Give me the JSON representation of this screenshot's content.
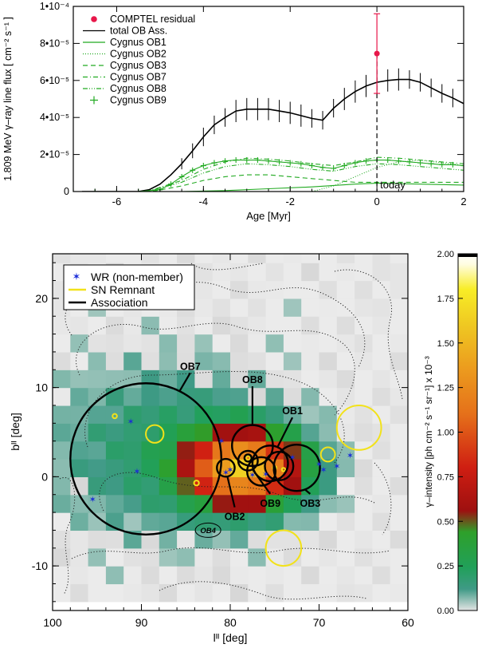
{
  "chart_data": [
    {
      "type": "line",
      "xlabel": "Age [Myr]",
      "ylabel": "1.809 MeV γ–ray line flux [ cm⁻² s⁻¹ ]",
      "xlim": [
        -7,
        2
      ],
      "ylim": [
        0,
        0.0001
      ],
      "x_ticks": [
        -6,
        -4,
        -2,
        0,
        2
      ],
      "y_ticks": [
        {
          "value": 0,
          "label": "0"
        },
        {
          "value": 2e-05,
          "label": "2•10⁻⁵"
        },
        {
          "value": 4e-05,
          "label": "4•10⁻⁵"
        },
        {
          "value": 6e-05,
          "label": "6•10⁻⁵"
        },
        {
          "value": 8e-05,
          "label": "8•10⁻⁵"
        },
        {
          "value": 0.0001,
          "label": "1•10⁻⁴"
        }
      ],
      "legend_position": "top-left",
      "annotation": "today",
      "today_x": 0,
      "comptel_residual": {
        "name": "COMPTEL residual",
        "x": 0,
        "y": 7.45e-05,
        "err_low": 2.15e-05,
        "err_high": 2.15e-05,
        "color": "#e8174a"
      },
      "series": [
        {
          "name": "total OB Ass.",
          "color": "#000000",
          "dash": "",
          "x": [
            -6.8,
            -5.5,
            -5.25,
            -5.0,
            -4.75,
            -4.5,
            -4.25,
            -4.0,
            -3.75,
            -3.5,
            -3.25,
            -3.0,
            -2.75,
            -2.5,
            -2.25,
            -2.0,
            -1.75,
            -1.5,
            -1.25,
            -1.0,
            -0.75,
            -0.5,
            -0.25,
            0.0,
            0.25,
            0.5,
            0.75,
            1.0,
            1.25,
            1.5,
            1.75,
            2.0
          ],
          "y": [
            0,
            0,
            1e-06,
            4e-06,
            9e-06,
            1.5e-05,
            2.2e-05,
            2.95e-05,
            3.6e-05,
            4e-05,
            4.35e-05,
            4.45e-05,
            4.45e-05,
            4.45e-05,
            4.35e-05,
            4.25e-05,
            4.1e-05,
            3.95e-05,
            3.85e-05,
            4.5e-05,
            5e-05,
            5.4e-05,
            5.7e-05,
            5.9e-05,
            6e-05,
            6.05e-05,
            6.05e-05,
            5.9e-05,
            5.6e-05,
            5.3e-05,
            5.05e-05,
            4.75e-05
          ],
          "errors": [
            0,
            0,
            0,
            0,
            0,
            3e-06,
            4e-06,
            5e-06,
            5e-06,
            5e-06,
            6e-06,
            6e-06,
            6e-06,
            6e-06,
            6e-06,
            6e-06,
            6e-06,
            5e-06,
            5e-06,
            5e-06,
            6e-06,
            6e-06,
            6e-06,
            6e-06,
            6e-06,
            6e-06,
            5e-06,
            5e-06,
            5e-06,
            5e-06,
            5e-06,
            5e-06
          ]
        },
        {
          "name": "Cygnus OB1",
          "color": "#22aa22",
          "dash": "",
          "x": [
            -7,
            -4.5,
            -3.5,
            -2.5,
            -1.5,
            -0.5,
            0,
            1,
            2
          ],
          "y": [
            0,
            0,
            5e-07,
            1.5e-06,
            2.5e-06,
            4e-06,
            4.5e-06,
            4e-06,
            3.5e-06
          ]
        },
        {
          "name": "Cygnus OB2",
          "color": "#22aa22",
          "dash": "1,2",
          "x": [
            -7,
            -1.5,
            -1.0,
            -0.5,
            0,
            0.5,
            1.0,
            1.5,
            2
          ],
          "y": [
            0,
            0,
            3e-06,
            8e-06,
            1.3e-05,
            1.6e-05,
            1.7e-05,
            1.55e-05,
            1.4e-05
          ]
        },
        {
          "name": "Cygnus OB3",
          "color": "#22aa22",
          "dash": "6,4",
          "x": [
            -7,
            -5.2,
            -4.5,
            -4.0,
            -3.5,
            -3.0,
            -2.5,
            -2.0,
            -1.5,
            -1.0,
            -0.5,
            0,
            0.5,
            1.0,
            1.5,
            2
          ],
          "y": [
            0,
            0,
            3e-06,
            6e-06,
            8e-06,
            9e-06,
            9e-06,
            8e-06,
            7e-06,
            6e-06,
            5e-06,
            5e-06,
            5e-06,
            5e-06,
            5e-06,
            5e-06
          ]
        },
        {
          "name": "Cygnus OB7",
          "color": "#22aa22",
          "dash": "6,3,1,3",
          "x": [
            -7,
            -5.3,
            -4.5,
            -4.0,
            -3.5,
            -3.0,
            -2.5,
            -2.0,
            -1.5,
            -1.0,
            -0.5,
            0,
            0.5,
            1.0,
            1.5,
            2
          ],
          "y": [
            0,
            0,
            6e-06,
            1.2e-05,
            1.6e-05,
            1.8e-05,
            1.75e-05,
            1.65e-05,
            1.5e-05,
            1.4e-05,
            1.6e-05,
            1.85e-05,
            1.8e-05,
            1.7e-05,
            1.6e-05,
            1.5e-05
          ]
        },
        {
          "name": "Cygnus OB8",
          "color": "#22aa22",
          "dash": "6,2,1,2,1,2,1,2",
          "x": [
            -7,
            -5.3,
            -4.5,
            -4.0,
            -3.5,
            -3.0,
            -2.5,
            -2.0,
            -1.5,
            -1.0,
            -0.5,
            0,
            0.5,
            1.0,
            1.5,
            2
          ],
          "y": [
            0,
            0,
            5e-06,
            1e-05,
            1.35e-05,
            1.5e-05,
            1.45e-05,
            1.35e-05,
            1.2e-05,
            1.1e-05,
            1.35e-05,
            1.5e-05,
            1.45e-05,
            1.35e-05,
            1.25e-05,
            1.15e-05
          ]
        },
        {
          "name": "Cygnus OB9",
          "color": "#22aa22",
          "dash": "",
          "marker": "+",
          "x": [
            -7,
            -6.5,
            -6,
            -5.5,
            -5.0,
            -4.75,
            -4.5,
            -4.25,
            -4.0,
            -3.75,
            -3.5,
            -3.25,
            -3.0,
            -2.75,
            -2.5,
            -2.25,
            -2.0,
            -1.75,
            -1.5,
            -1.25,
            -1.0,
            -0.75,
            -0.5,
            -0.25,
            0,
            0.25,
            0.5,
            0.75,
            1.0,
            1.25,
            1.5,
            1.75,
            2.0
          ],
          "y": [
            0,
            0,
            0,
            0,
            1e-06,
            4e-06,
            8e-06,
            1.15e-05,
            1.4e-05,
            1.55e-05,
            1.65e-05,
            1.7e-05,
            1.7e-05,
            1.7e-05,
            1.65e-05,
            1.6e-05,
            1.55e-05,
            1.5e-05,
            1.4e-05,
            1.3e-05,
            1.25e-05,
            1.4e-05,
            1.55e-05,
            1.65e-05,
            1.7e-05,
            1.7e-05,
            1.65e-05,
            1.6e-05,
            1.55e-05,
            1.5e-05,
            1.45e-05,
            1.45e-05,
            1.4e-05
          ]
        }
      ]
    },
    {
      "type": "heatmap",
      "xlabel": "lᴵᴵ [deg]",
      "ylabel": "bᴵᴵ [deg]",
      "xlim": [
        100,
        60
      ],
      "ylim": [
        -15,
        25
      ],
      "x_ticks": [
        100,
        90,
        80,
        70,
        60
      ],
      "y_ticks": [
        20,
        10,
        0,
        -10
      ],
      "colorbar": {
        "label": "γ–intensity [ph cm⁻² s⁻¹ sr⁻¹]  x 10⁻³",
        "min": 0,
        "max": 2.0,
        "ticks": [
          "0.00",
          "0.25",
          "0.50",
          "0.75",
          "1.00",
          "1.25",
          "1.50",
          "1.75",
          "2.00"
        ],
        "stops": [
          {
            "v": 0.0,
            "c": "#e4e4e4"
          },
          {
            "v": 0.06,
            "c": "#3f9a86"
          },
          {
            "v": 0.12,
            "c": "#21a05a"
          },
          {
            "v": 0.22,
            "c": "#2ea02a"
          },
          {
            "v": 0.28,
            "c": "#9e1010"
          },
          {
            "v": 0.4,
            "c": "#cf1e12"
          },
          {
            "v": 0.55,
            "c": "#e5701a"
          },
          {
            "v": 0.68,
            "c": "#ec9c1e"
          },
          {
            "v": 0.8,
            "c": "#efc822"
          },
          {
            "v": 0.9,
            "c": "#f8ed26"
          },
          {
            "v": 0.97,
            "c": "#fffde0"
          },
          {
            "v": 1.0,
            "c": "#ffffff"
          }
        ]
      },
      "emission": {
        "l0": 77.5,
        "b0": 1.0,
        "sl": 4.2,
        "sb": 2.7,
        "peak": 1.5,
        "l1": 86.0,
        "b1": 3.0,
        "sl1": 9.0,
        "sb1": 6.5,
        "peak1": 0.2
      },
      "legend_position": "top-left",
      "legend": [
        {
          "label": "WR (non-member)",
          "kind": "star",
          "color": "#1a2cd8"
        },
        {
          "label": "SN Remnant",
          "kind": "line",
          "color": "#f2e21a"
        },
        {
          "label": "Association",
          "kind": "line",
          "color": "#000000"
        }
      ],
      "associations": [
        {
          "name": "OB7",
          "l": 89.5,
          "b": 2.0,
          "r": 8.5,
          "label_l": 84.5,
          "label_b": 12.0
        },
        {
          "name": "OB8",
          "l": 77.5,
          "b": 3.5,
          "r": 2.3,
          "label_l": 77.5,
          "label_b": 10.5
        },
        {
          "name": "OB1",
          "l": 75.5,
          "b": 1.5,
          "r": 2.0,
          "label_l": 73.0,
          "label_b": 7.0
        },
        {
          "name": "OB2",
          "l": 80.5,
          "b": 1.0,
          "r": 1.0,
          "label_l": 79.5,
          "label_b": -4.5
        },
        {
          "name": "OB9",
          "l": 78.0,
          "b": 1.8,
          "r": 1.1,
          "label_l": 75.5,
          "label_b": -3.0
        },
        {
          "name": "OB3",
          "l": 72.5,
          "b": 1.0,
          "r": 2.6,
          "label_l": 71.0,
          "label_b": -3.0
        },
        {
          "name": "",
          "l": 78.0,
          "b": 2.1,
          "r": 0.4
        },
        {
          "name": "",
          "l": 76.5,
          "b": 0.6,
          "r": 1.6
        },
        {
          "name": "",
          "l": 74.5,
          "b": 1.2,
          "r": 1.6
        }
      ],
      "ob4_label": {
        "text": "OB4",
        "l": 82.5,
        "b": -6.0
      },
      "sn_remnants": [
        {
          "l": 65.5,
          "b": 5.5,
          "r": 2.5
        },
        {
          "l": 74.0,
          "b": -8.0,
          "r": 2.0
        },
        {
          "l": 69.0,
          "b": 2.5,
          "r": 0.8
        },
        {
          "l": 88.5,
          "b": 4.8,
          "r": 1.0
        },
        {
          "l": 93.0,
          "b": 6.8,
          "r": 0.25
        },
        {
          "l": 83.8,
          "b": -0.7,
          "r": 0.28
        },
        {
          "l": 78.0,
          "b": 2.1,
          "r": 0.25
        },
        {
          "l": 74.0,
          "b": 0.8,
          "r": 0.2
        },
        {
          "l": 75.0,
          "b": 1.0,
          "r": 0.2
        }
      ],
      "wr_stars": [
        {
          "l": 95.5,
          "b": -2.5
        },
        {
          "l": 91.2,
          "b": 6.2
        },
        {
          "l": 90.5,
          "b": 0.6
        },
        {
          "l": 81.0,
          "b": 4.0
        },
        {
          "l": 80.5,
          "b": 0.5
        },
        {
          "l": 80.0,
          "b": 0.8
        },
        {
          "l": 77.5,
          "b": 0.2
        },
        {
          "l": 76.0,
          "b": 0.3
        },
        {
          "l": 73.0,
          "b": 2.2
        },
        {
          "l": 70.0,
          "b": 1.4
        },
        {
          "l": 69.5,
          "b": 0.8
        },
        {
          "l": 68.0,
          "b": 1.2
        },
        {
          "l": 66.5,
          "b": 2.4
        }
      ]
    }
  ]
}
